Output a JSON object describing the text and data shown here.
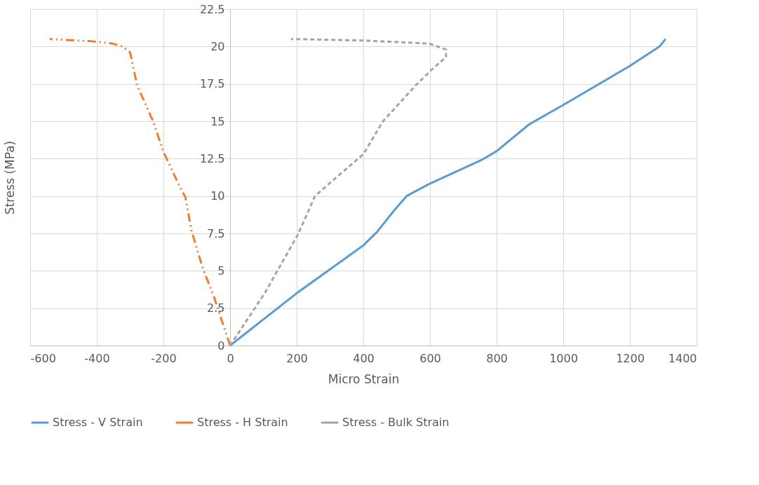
{
  "chart_data": {
    "type": "line",
    "xlabel": "Micro Strain",
    "ylabel": "Stress (MPa)",
    "xlim": [
      -600,
      1400
    ],
    "xticks": [
      -600,
      -400,
      -200,
      0,
      200,
      400,
      600,
      800,
      1000,
      1200,
      1400
    ],
    "ylim": [
      0,
      22.5
    ],
    "yticks": [
      0,
      2.5,
      5,
      7.5,
      10,
      12.5,
      15,
      17.5,
      20,
      22.5
    ],
    "grid": true,
    "legend": "bottom",
    "marker": "none",
    "series": [
      {
        "name": "Stress - V Strain",
        "color": "#5b9bd5",
        "line_style": "solid",
        "x": [
          0,
          200,
          400,
          441,
          491,
          530,
          597,
          754,
          800,
          898,
          1001,
          1200,
          1289,
          1307
        ],
        "values": [
          0,
          3.5,
          6.7,
          7.6,
          9.0,
          10.0,
          10.8,
          12.4,
          13.0,
          14.8,
          16.1,
          18.7,
          20.0,
          20.5
        ]
      },
      {
        "name": "Stress - H Strain",
        "color": "#ed7d31",
        "line_style": "dashdot",
        "x": [
          0,
          -49,
          -81,
          -116,
          -134,
          -161,
          -201,
          -231,
          -279,
          -300,
          -323,
          -353,
          -415,
          -541
        ],
        "values": [
          0,
          3.3,
          5.1,
          7.7,
          9.9,
          11.1,
          13.0,
          15.0,
          17.4,
          19.6,
          20.0,
          20.2,
          20.35,
          20.5
        ]
      },
      {
        "name": "Stress - Bulk Strain",
        "color": "#a5a5a5",
        "line_style": "dashed",
        "x": [
          0,
          104,
          203,
          235,
          255,
          301,
          400,
          459,
          557,
          603,
          648,
          648,
          597,
          400,
          183
        ],
        "values": [
          0,
          3.5,
          7.4,
          9.0,
          10.0,
          10.9,
          12.8,
          15.0,
          17.4,
          18.4,
          19.3,
          19.8,
          20.2,
          20.4,
          20.5
        ]
      }
    ]
  }
}
